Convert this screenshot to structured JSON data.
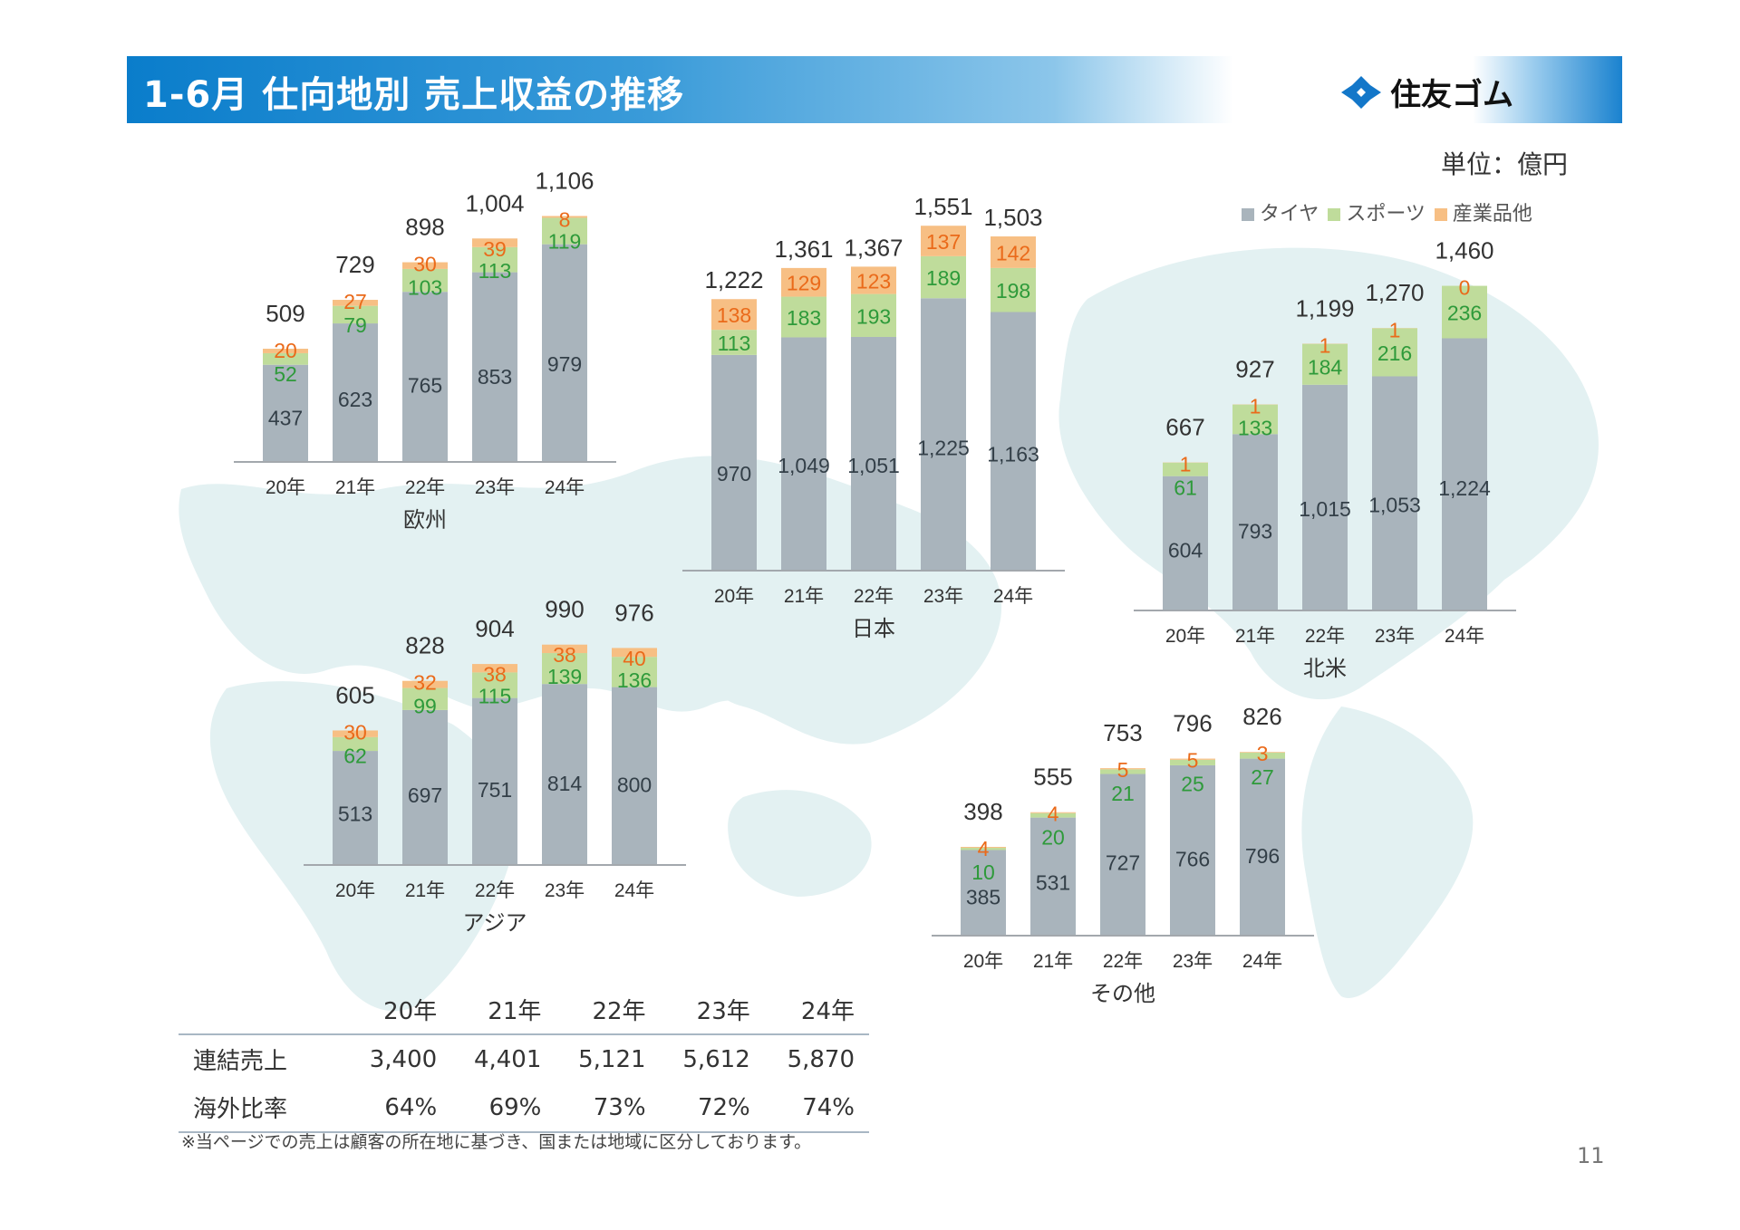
{
  "header": {
    "title": "1-6月 仕向地別 売上収益の推移",
    "logo_text": "住友ゴム"
  },
  "unit_label": "単位：億円",
  "legend": [
    {
      "label": "タイヤ",
      "color": "#a9b4bc"
    },
    {
      "label": "スポーツ",
      "color": "#bfdc9b"
    },
    {
      "label": "産業品他",
      "color": "#f7bf84"
    }
  ],
  "colors": {
    "tire": "#a9b4bc",
    "sports": "#bfdc9b",
    "industrial": "#f7bf84",
    "tire_label": "#333f48",
    "sports_label": "#2e9a3a",
    "industrial_label": "#ea6a1a",
    "total_label": "#333333",
    "axis": "#a3a8ad"
  },
  "chart_data": [
    {
      "type": "bar",
      "stacked": true,
      "title": "欧州",
      "categories": [
        "20年",
        "21年",
        "22年",
        "23年",
        "24年"
      ],
      "series": [
        {
          "name": "タイヤ",
          "values": [
            437,
            623,
            765,
            853,
            979
          ]
        },
        {
          "name": "スポーツ",
          "values": [
            52,
            79,
            103,
            113,
            119
          ]
        },
        {
          "name": "産業品他",
          "values": [
            20,
            27,
            30,
            39,
            8
          ]
        }
      ],
      "totals": [
        509,
        729,
        898,
        1004,
        1106
      ],
      "total_labels": [
        "509",
        "729",
        "898",
        "1,004",
        "1,106"
      ]
    },
    {
      "type": "bar",
      "stacked": true,
      "title": "日本",
      "categories": [
        "20年",
        "21年",
        "22年",
        "23年",
        "24年"
      ],
      "series": [
        {
          "name": "タイヤ",
          "values": [
            970,
            1049,
            1051,
            1225,
            1163
          ]
        },
        {
          "name": "スポーツ",
          "values": [
            113,
            183,
            193,
            189,
            198
          ]
        },
        {
          "name": "産業品他",
          "values": [
            138,
            129,
            123,
            137,
            142
          ]
        }
      ],
      "totals": [
        1222,
        1361,
        1367,
        1551,
        1503
      ],
      "total_labels": [
        "1,222",
        "1,361",
        "1,367",
        "1,551",
        "1,503"
      ]
    },
    {
      "type": "bar",
      "stacked": true,
      "title": "北米",
      "categories": [
        "20年",
        "21年",
        "22年",
        "23年",
        "24年"
      ],
      "series": [
        {
          "name": "タイヤ",
          "values": [
            604,
            793,
            1015,
            1053,
            1224
          ]
        },
        {
          "name": "スポーツ",
          "values": [
            61,
            133,
            184,
            216,
            236
          ]
        },
        {
          "name": "産業品他",
          "values": [
            1,
            1,
            1,
            1,
            0
          ]
        }
      ],
      "totals": [
        667,
        927,
        1199,
        1270,
        1460
      ],
      "total_labels": [
        "667",
        "927",
        "1,199",
        "1,270",
        "1,460"
      ]
    },
    {
      "type": "bar",
      "stacked": true,
      "title": "アジア",
      "categories": [
        "20年",
        "21年",
        "22年",
        "23年",
        "24年"
      ],
      "series": [
        {
          "name": "タイヤ",
          "values": [
            513,
            697,
            751,
            814,
            800
          ]
        },
        {
          "name": "スポーツ",
          "values": [
            62,
            99,
            115,
            139,
            136
          ]
        },
        {
          "name": "産業品他",
          "values": [
            30,
            32,
            38,
            38,
            40
          ]
        }
      ],
      "totals": [
        605,
        828,
        904,
        990,
        976
      ],
      "total_labels": [
        "605",
        "828",
        "904",
        "990",
        "976"
      ]
    },
    {
      "type": "bar",
      "stacked": true,
      "title": "その他",
      "categories": [
        "20年",
        "21年",
        "22年",
        "23年",
        "24年"
      ],
      "series": [
        {
          "name": "タイヤ",
          "values": [
            385,
            531,
            727,
            766,
            796
          ]
        },
        {
          "name": "スポーツ",
          "values": [
            10,
            20,
            21,
            25,
            27
          ]
        },
        {
          "name": "産業品他",
          "values": [
            4,
            4,
            5,
            5,
            3
          ]
        }
      ],
      "totals": [
        398,
        555,
        753,
        796,
        826
      ],
      "total_labels": [
        "398",
        "555",
        "753",
        "796",
        "826"
      ]
    }
  ],
  "summary_table": {
    "columns": [
      "",
      "20年",
      "21年",
      "22年",
      "23年",
      "24年"
    ],
    "rows": [
      {
        "label": "連結売上",
        "values": [
          "3,400",
          "4,401",
          "5,121",
          "5,612",
          "5,870"
        ]
      },
      {
        "label": "海外比率",
        "values": [
          "64%",
          "69%",
          "73%",
          "72%",
          "74%"
        ]
      }
    ]
  },
  "footnote": "※当ページでの売上は顧客の所在地に基づき、国または地域に区分しております。",
  "page_number": "11"
}
